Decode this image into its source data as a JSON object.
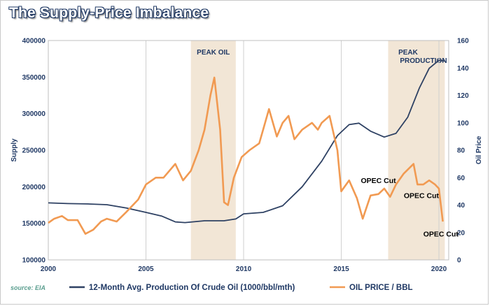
{
  "chart_data": {
    "type": "line",
    "title": "The Supply-Price Imbalance",
    "source": "source: EIA",
    "ylabel": "Supply",
    "y2label": "Oil Price",
    "x_ticks": [
      "2000",
      "2005",
      "2010",
      "2015",
      "2020"
    ],
    "y_ticks": [
      "100000",
      "150000",
      "200000",
      "250000",
      "300000",
      "350000",
      "400000"
    ],
    "y2_ticks": [
      "0",
      "20",
      "40",
      "60",
      "80",
      "100",
      "120",
      "140",
      "160"
    ],
    "xlim": [
      2000,
      2020.5
    ],
    "ylim": [
      100000,
      400000
    ],
    "y2lim": [
      0,
      160
    ],
    "grid": "vertical",
    "legend_position": "bottom",
    "bands": [
      {
        "label": "PEAK OIL",
        "x0": 2007.3,
        "x1": 2009.6,
        "color": "#f2e6d6"
      },
      {
        "label": "PEAK",
        "label2": "PRODUCTION",
        "x0": 2017.4,
        "x1": 2020.3,
        "color": "#f2e6d6"
      }
    ],
    "annotations": [
      {
        "text": "OPEC Cut",
        "x": 2016.9,
        "y2": 56
      },
      {
        "text": "OPEC Cut",
        "x": 2019.1,
        "y2": 45
      },
      {
        "text": "OPEC Cut",
        "x": 2020.1,
        "y2": 17
      }
    ],
    "series": [
      {
        "name": "12-Month Avg. Production Of Crude Oil (1000/bbl/mth)",
        "axis": "left",
        "color": "#2e4163",
        "points": [
          [
            2000,
            178000
          ],
          [
            2001,
            177000
          ],
          [
            2002,
            176500
          ],
          [
            2003,
            175500
          ],
          [
            2004,
            171000
          ],
          [
            2005,
            165000
          ],
          [
            2005.8,
            160000
          ],
          [
            2006.5,
            152000
          ],
          [
            2007,
            151000
          ],
          [
            2008,
            153500
          ],
          [
            2009,
            153500
          ],
          [
            2009.6,
            156000
          ],
          [
            2010,
            163000
          ],
          [
            2011,
            165000
          ],
          [
            2012,
            174000
          ],
          [
            2013,
            200000
          ],
          [
            2014,
            235000
          ],
          [
            2014.8,
            270000
          ],
          [
            2015.4,
            285000
          ],
          [
            2015.9,
            287000
          ],
          [
            2016.5,
            276000
          ],
          [
            2017.2,
            268000
          ],
          [
            2017.8,
            273000
          ],
          [
            2018.4,
            295000
          ],
          [
            2019,
            335000
          ],
          [
            2019.5,
            362000
          ],
          [
            2020,
            373000
          ],
          [
            2020.3,
            372000
          ]
        ]
      },
      {
        "name": "OIL PRICE / BBL",
        "axis": "right",
        "color": "#f19a52",
        "points": [
          [
            2000,
            27
          ],
          [
            2000.3,
            30
          ],
          [
            2000.7,
            32
          ],
          [
            2001,
            29
          ],
          [
            2001.5,
            29
          ],
          [
            2001.9,
            19
          ],
          [
            2002.3,
            22
          ],
          [
            2002.7,
            28
          ],
          [
            2003,
            30
          ],
          [
            2003.5,
            28
          ],
          [
            2004,
            35
          ],
          [
            2004.6,
            44
          ],
          [
            2005,
            55
          ],
          [
            2005.5,
            60
          ],
          [
            2005.9,
            60
          ],
          [
            2006.5,
            70
          ],
          [
            2006.9,
            58
          ],
          [
            2007.3,
            65
          ],
          [
            2007.7,
            80
          ],
          [
            2008,
            95
          ],
          [
            2008.3,
            120
          ],
          [
            2008.5,
            133
          ],
          [
            2008.8,
            95
          ],
          [
            2009,
            42
          ],
          [
            2009.2,
            40
          ],
          [
            2009.5,
            60
          ],
          [
            2009.9,
            75
          ],
          [
            2010.3,
            80
          ],
          [
            2010.8,
            85
          ],
          [
            2011,
            95
          ],
          [
            2011.3,
            110
          ],
          [
            2011.7,
            90
          ],
          [
            2012,
            100
          ],
          [
            2012.3,
            105
          ],
          [
            2012.6,
            88
          ],
          [
            2013,
            95
          ],
          [
            2013.5,
            100
          ],
          [
            2013.8,
            95
          ],
          [
            2014,
            100
          ],
          [
            2014.4,
            105
          ],
          [
            2014.8,
            80
          ],
          [
            2015,
            50
          ],
          [
            2015.4,
            58
          ],
          [
            2015.8,
            45
          ],
          [
            2016.1,
            30
          ],
          [
            2016.5,
            47
          ],
          [
            2016.9,
            48
          ],
          [
            2017.2,
            52
          ],
          [
            2017.5,
            46
          ],
          [
            2017.8,
            55
          ],
          [
            2018.2,
            63
          ],
          [
            2018.7,
            70
          ],
          [
            2018.9,
            55
          ],
          [
            2019.2,
            55
          ],
          [
            2019.5,
            58
          ],
          [
            2019.8,
            55
          ],
          [
            2020,
            52
          ],
          [
            2020.2,
            28
          ]
        ]
      }
    ]
  }
}
